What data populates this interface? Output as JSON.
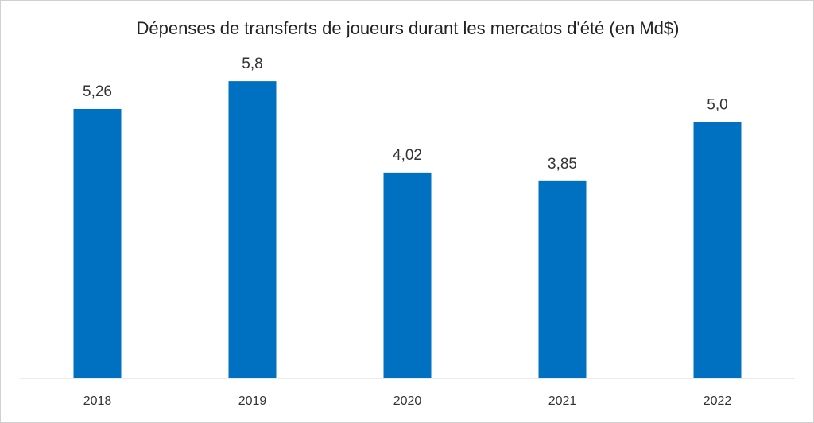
{
  "chart_data": {
    "type": "bar",
    "title": "Dépenses de transferts de joueurs durant les mercatos d'été (en Md$)",
    "categories": [
      "2018",
      "2019",
      "2020",
      "2021",
      "2022"
    ],
    "values": [
      5.26,
      5.8,
      4.02,
      3.85,
      5.0
    ],
    "data_labels": [
      "5,26",
      "5,8",
      "4,02",
      "3,85",
      "5,0"
    ],
    "xlabel": "",
    "ylabel": "",
    "ylim": [
      0,
      6.5
    ],
    "grid": false,
    "legend": "none",
    "bar_color": "#0070C0",
    "axis_color": "#d9d9d9"
  }
}
